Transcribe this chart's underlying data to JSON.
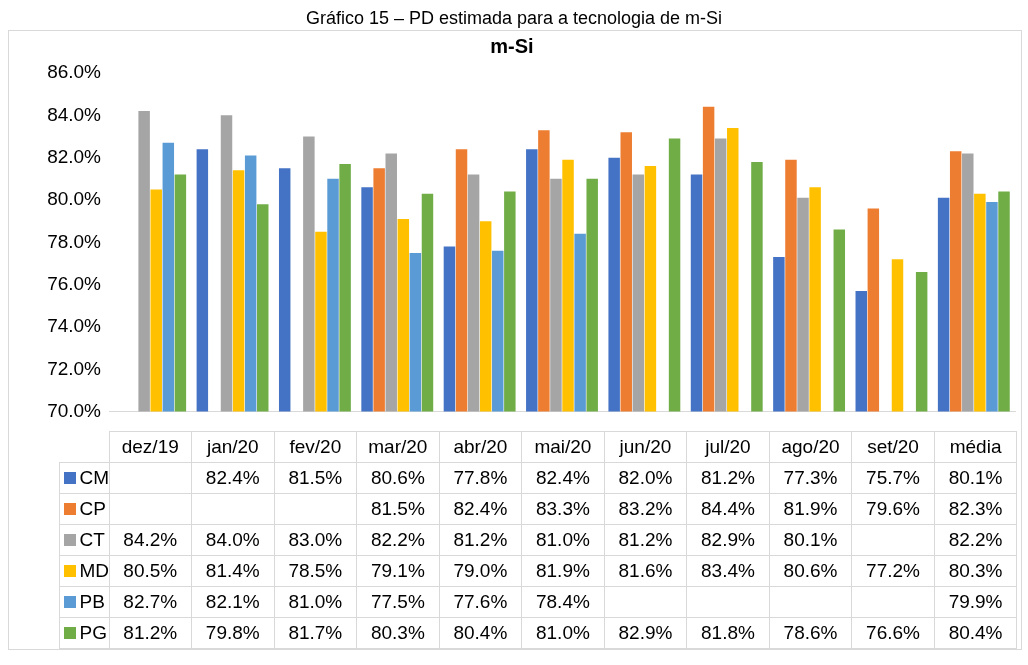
{
  "chart_data": {
    "type": "bar",
    "title": "m-Si",
    "annotations": [
      "Gráfico 15 – PD estimada para a tecnologia de m-Si"
    ],
    "categories": [
      "dez/19",
      "jan/20",
      "fev/20",
      "mar/20",
      "abr/20",
      "mai/20",
      "jun/20",
      "jul/20",
      "ago/20",
      "set/20",
      "média"
    ],
    "series": [
      {
        "name": "CM",
        "color": "#4472c4",
        "values": [
          null,
          82.4,
          81.5,
          80.6,
          77.8,
          82.4,
          82.0,
          81.2,
          77.3,
          75.7,
          80.1
        ],
        "value_labels": [
          null,
          "82.4%",
          "81.5%",
          "80.6%",
          "77.8%",
          "82.4%",
          "82.0%",
          "81.2%",
          "77.3%",
          "75.7%",
          "80.1%"
        ]
      },
      {
        "name": "CP",
        "color": "#ed7d31",
        "values": [
          null,
          null,
          null,
          81.5,
          82.4,
          83.3,
          83.2,
          84.4,
          81.9,
          79.6,
          82.3
        ],
        "value_labels": [
          null,
          null,
          null,
          "81.5%",
          "82.4%",
          "83.3%",
          "83.2%",
          "84.4%",
          "81.9%",
          "79.6%",
          "82.3%"
        ]
      },
      {
        "name": "CT",
        "color": "#a5a5a5",
        "values": [
          84.2,
          84.0,
          83.0,
          82.2,
          81.2,
          81.0,
          81.2,
          82.9,
          80.1,
          null,
          82.2
        ],
        "value_labels": [
          "84.2%",
          "84.0%",
          "83.0%",
          "82.2%",
          "81.2%",
          "81.0%",
          "81.2%",
          "82.9%",
          "80.1%",
          null,
          "82.2%"
        ]
      },
      {
        "name": "MD",
        "color": "#ffc000",
        "values": [
          80.5,
          81.4,
          78.5,
          79.1,
          79.0,
          81.9,
          81.6,
          83.4,
          80.6,
          77.2,
          80.3
        ],
        "value_labels": [
          "80.5%",
          "81.4%",
          "78.5%",
          "79.1%",
          "79.0%",
          "81.9%",
          "81.6%",
          "83.4%",
          "80.6%",
          "77.2%",
          "80.3%"
        ]
      },
      {
        "name": "PB",
        "color": "#5b9bd5",
        "values": [
          82.7,
          82.1,
          81.0,
          77.5,
          77.6,
          78.4,
          null,
          null,
          null,
          null,
          79.9
        ],
        "value_labels": [
          "82.7%",
          "82.1%",
          "81.0%",
          "77.5%",
          "77.6%",
          "78.4%",
          null,
          null,
          null,
          null,
          "79.9%"
        ]
      },
      {
        "name": "PG",
        "color": "#70ad47",
        "values": [
          81.2,
          79.8,
          81.7,
          80.3,
          80.4,
          81.0,
          82.9,
          81.8,
          78.6,
          76.6,
          80.4
        ],
        "value_labels": [
          "81.2%",
          "79.8%",
          "81.7%",
          "80.3%",
          "80.4%",
          "81.0%",
          "82.9%",
          "81.8%",
          "78.6%",
          "76.6%",
          "80.4%"
        ]
      }
    ],
    "ylim": [
      70,
      86
    ],
    "yticks": [
      {
        "value": 70,
        "label": "70.0%"
      },
      {
        "value": 72,
        "label": "72.0%"
      },
      {
        "value": 74,
        "label": "74.0%"
      },
      {
        "value": 76,
        "label": "76.0%"
      },
      {
        "value": 78,
        "label": "78.0%"
      },
      {
        "value": 80,
        "label": "80.0%"
      },
      {
        "value": 82,
        "label": "82.0%"
      },
      {
        "value": 84,
        "label": "84.0%"
      },
      {
        "value": 86,
        "label": "86.0%"
      }
    ],
    "grid": false,
    "legend": "bottom"
  }
}
